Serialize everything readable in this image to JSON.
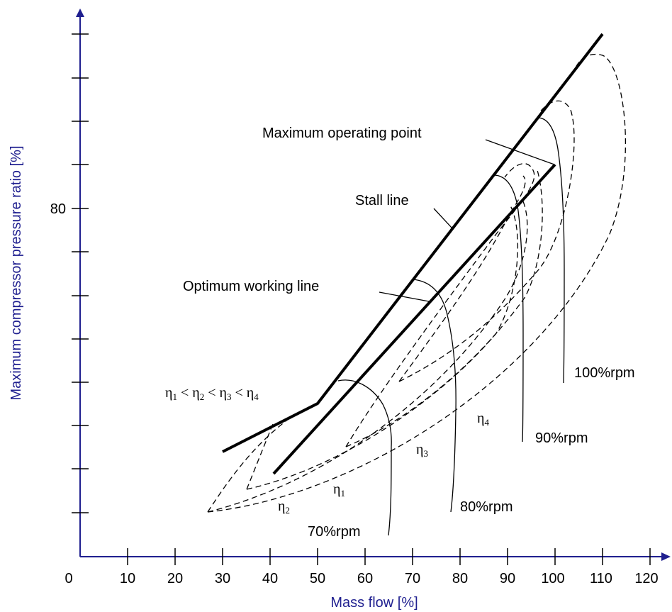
{
  "axes": {
    "x_title": "Mass flow [%]",
    "y_title": "Maximum compressor pressure ratio [%]",
    "x_ticks": [
      "0",
      "10",
      "20",
      "30",
      "40",
      "50",
      "60",
      "70",
      "80",
      "90",
      "100",
      "110",
      "120"
    ],
    "y_tick_labeled": "80",
    "y_tick_count": 11
  },
  "labels": {
    "max_operating_point": "Maximum operating point",
    "stall_line": "Stall line",
    "optimum_working_line": "Optimum working line",
    "rpm_70": "70%rpm",
    "rpm_80": "80%rpm",
    "rpm_90": "90%rpm",
    "rpm_100": "100%rpm"
  },
  "efficiency": {
    "relation": [
      "η",
      "1",
      " < η",
      "2",
      " < η",
      "3",
      " < η",
      "4"
    ],
    "eta1": [
      "η",
      "1"
    ],
    "eta2": [
      "η",
      "2"
    ],
    "eta3": [
      "η",
      "3"
    ],
    "eta4": [
      "η",
      "4"
    ]
  },
  "colors": {
    "axis": "#1f1f8f",
    "lines": "#000000"
  }
}
